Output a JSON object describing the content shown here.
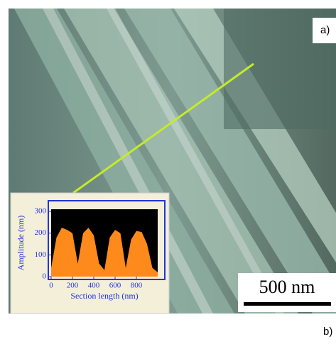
{
  "panel_labels": [
    "a)",
    "b)"
  ],
  "scale_bar": "500 nm",
  "chart_data": {
    "type": "area",
    "xlabel": "Section length (nm)",
    "ylabel": "Amplitude (nm)",
    "x": [
      0,
      50,
      100,
      150,
      200,
      250,
      300,
      350,
      400,
      450,
      500,
      550,
      600,
      650,
      700,
      750,
      800,
      850,
      900,
      950,
      1000
    ],
    "series": [
      {
        "color": "#ff8a1c",
        "values": [
          40,
          180,
          225,
          215,
          200,
          60,
          200,
          225,
          190,
          60,
          30,
          180,
          215,
          200,
          40,
          170,
          210,
          205,
          150,
          40,
          20
        ]
      }
    ],
    "xlim": [
      0,
      1000
    ],
    "ylim": [
      0,
      310
    ],
    "xticks": [
      0,
      200,
      400,
      600,
      800
    ],
    "yticks": [
      0,
      100,
      200,
      300
    ]
  }
}
